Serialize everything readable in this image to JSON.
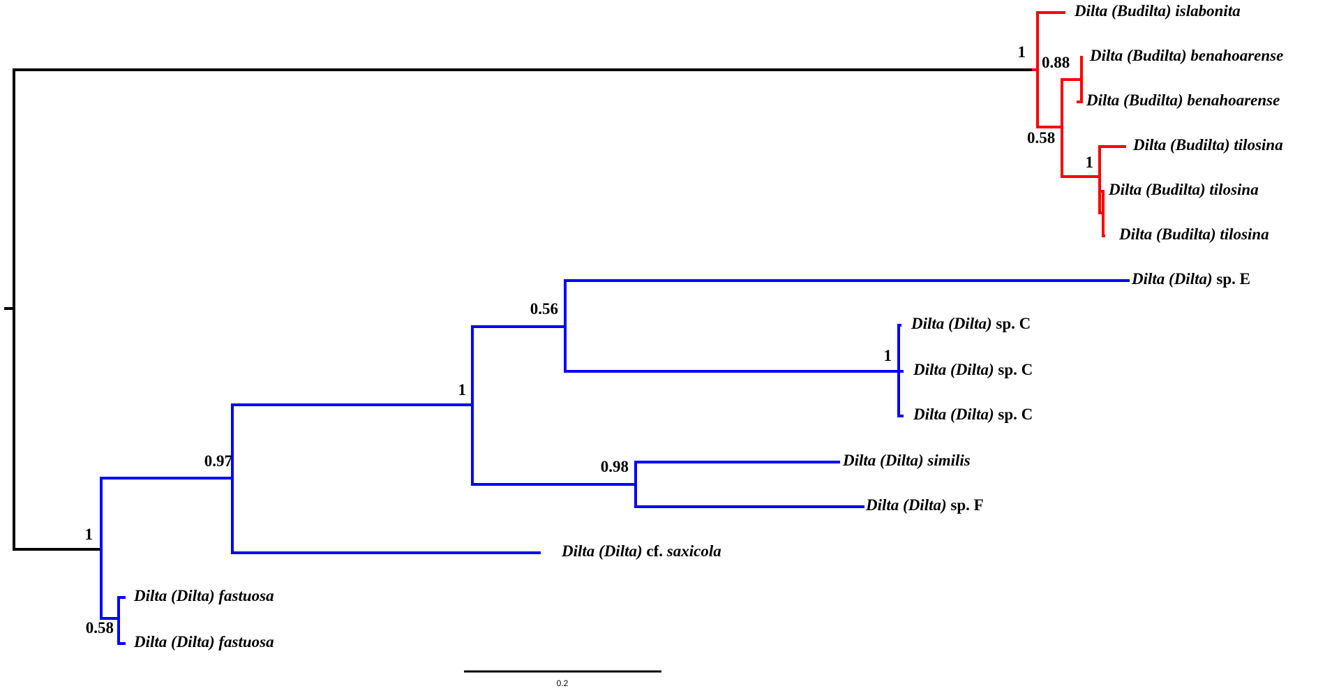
{
  "colors": {
    "root": "#000000",
    "budilta": "#ff0000",
    "dilta": "#0000ff"
  },
  "tips": [
    {
      "id": "t1",
      "genus": "Dilta",
      "subgenus": "(Budilta)",
      "species": "islabonita",
      "species_italic": true
    },
    {
      "id": "t2",
      "genus": "Dilta",
      "subgenus": "(Budilta)",
      "species": "benahoarense",
      "species_italic": true
    },
    {
      "id": "t3",
      "genus": "Dilta",
      "subgenus": "(Budilta)",
      "species": "benahoarense",
      "species_italic": true
    },
    {
      "id": "t4",
      "genus": "Dilta",
      "subgenus": "(Budilta)",
      "species": "tilosina",
      "species_italic": true
    },
    {
      "id": "t5",
      "genus": "Dilta",
      "subgenus": "(Budilta)",
      "species": "tilosina",
      "species_italic": true
    },
    {
      "id": "t6",
      "genus": "Dilta",
      "subgenus": "(Budilta)",
      "species": "tilosina",
      "species_italic": true
    },
    {
      "id": "t7",
      "genus": "Dilta",
      "subgenus": "(Dilta)",
      "species": "sp. E",
      "species_italic": false
    },
    {
      "id": "t8",
      "genus": "Dilta",
      "subgenus": "(Dilta)",
      "species": "sp. C",
      "species_italic": false
    },
    {
      "id": "t9",
      "genus": "Dilta",
      "subgenus": "(Dilta)",
      "species": "sp. C",
      "species_italic": false
    },
    {
      "id": "t10",
      "genus": "Dilta",
      "subgenus": "(Dilta)",
      "species": "sp. C",
      "species_italic": false
    },
    {
      "id": "t11",
      "genus": "Dilta",
      "subgenus": "(Dilta)",
      "species": "similis",
      "species_italic": true
    },
    {
      "id": "t12",
      "genus": "Dilta",
      "subgenus": "(Dilta)",
      "species": "sp. F",
      "species_italic": false
    },
    {
      "id": "t13",
      "genus": "Dilta",
      "subgenus": "(Dilta)",
      "species_prefix": "cf.",
      "species": "saxicola",
      "species_italic": true
    },
    {
      "id": "t14",
      "genus": "Dilta",
      "subgenus": "(Dilta)",
      "species": "fastuosa",
      "species_italic": true
    },
    {
      "id": "t15",
      "genus": "Dilta",
      "subgenus": "(Dilta)",
      "species": "fastuosa",
      "species_italic": true
    }
  ],
  "supports": [
    {
      "node": "budilta-clade",
      "value": "1"
    },
    {
      "node": "benahoarense-pair",
      "value": "0.88"
    },
    {
      "node": "benahoarense-tilosina",
      "value": "0.58"
    },
    {
      "node": "tilosina-clade",
      "value": "1"
    },
    {
      "node": "dilta-clade",
      "value": "1"
    },
    {
      "node": "fastuosa-pair",
      "value": "0.58"
    },
    {
      "node": "main-dilta",
      "value": "0.97"
    },
    {
      "node": "spE-spC-similis",
      "value": "1"
    },
    {
      "node": "spE-spC",
      "value": "0.56"
    },
    {
      "node": "spC-clade",
      "value": "1"
    },
    {
      "node": "similis-spF",
      "value": "0.98"
    }
  ],
  "scale_bar": {
    "label": "0.2"
  }
}
